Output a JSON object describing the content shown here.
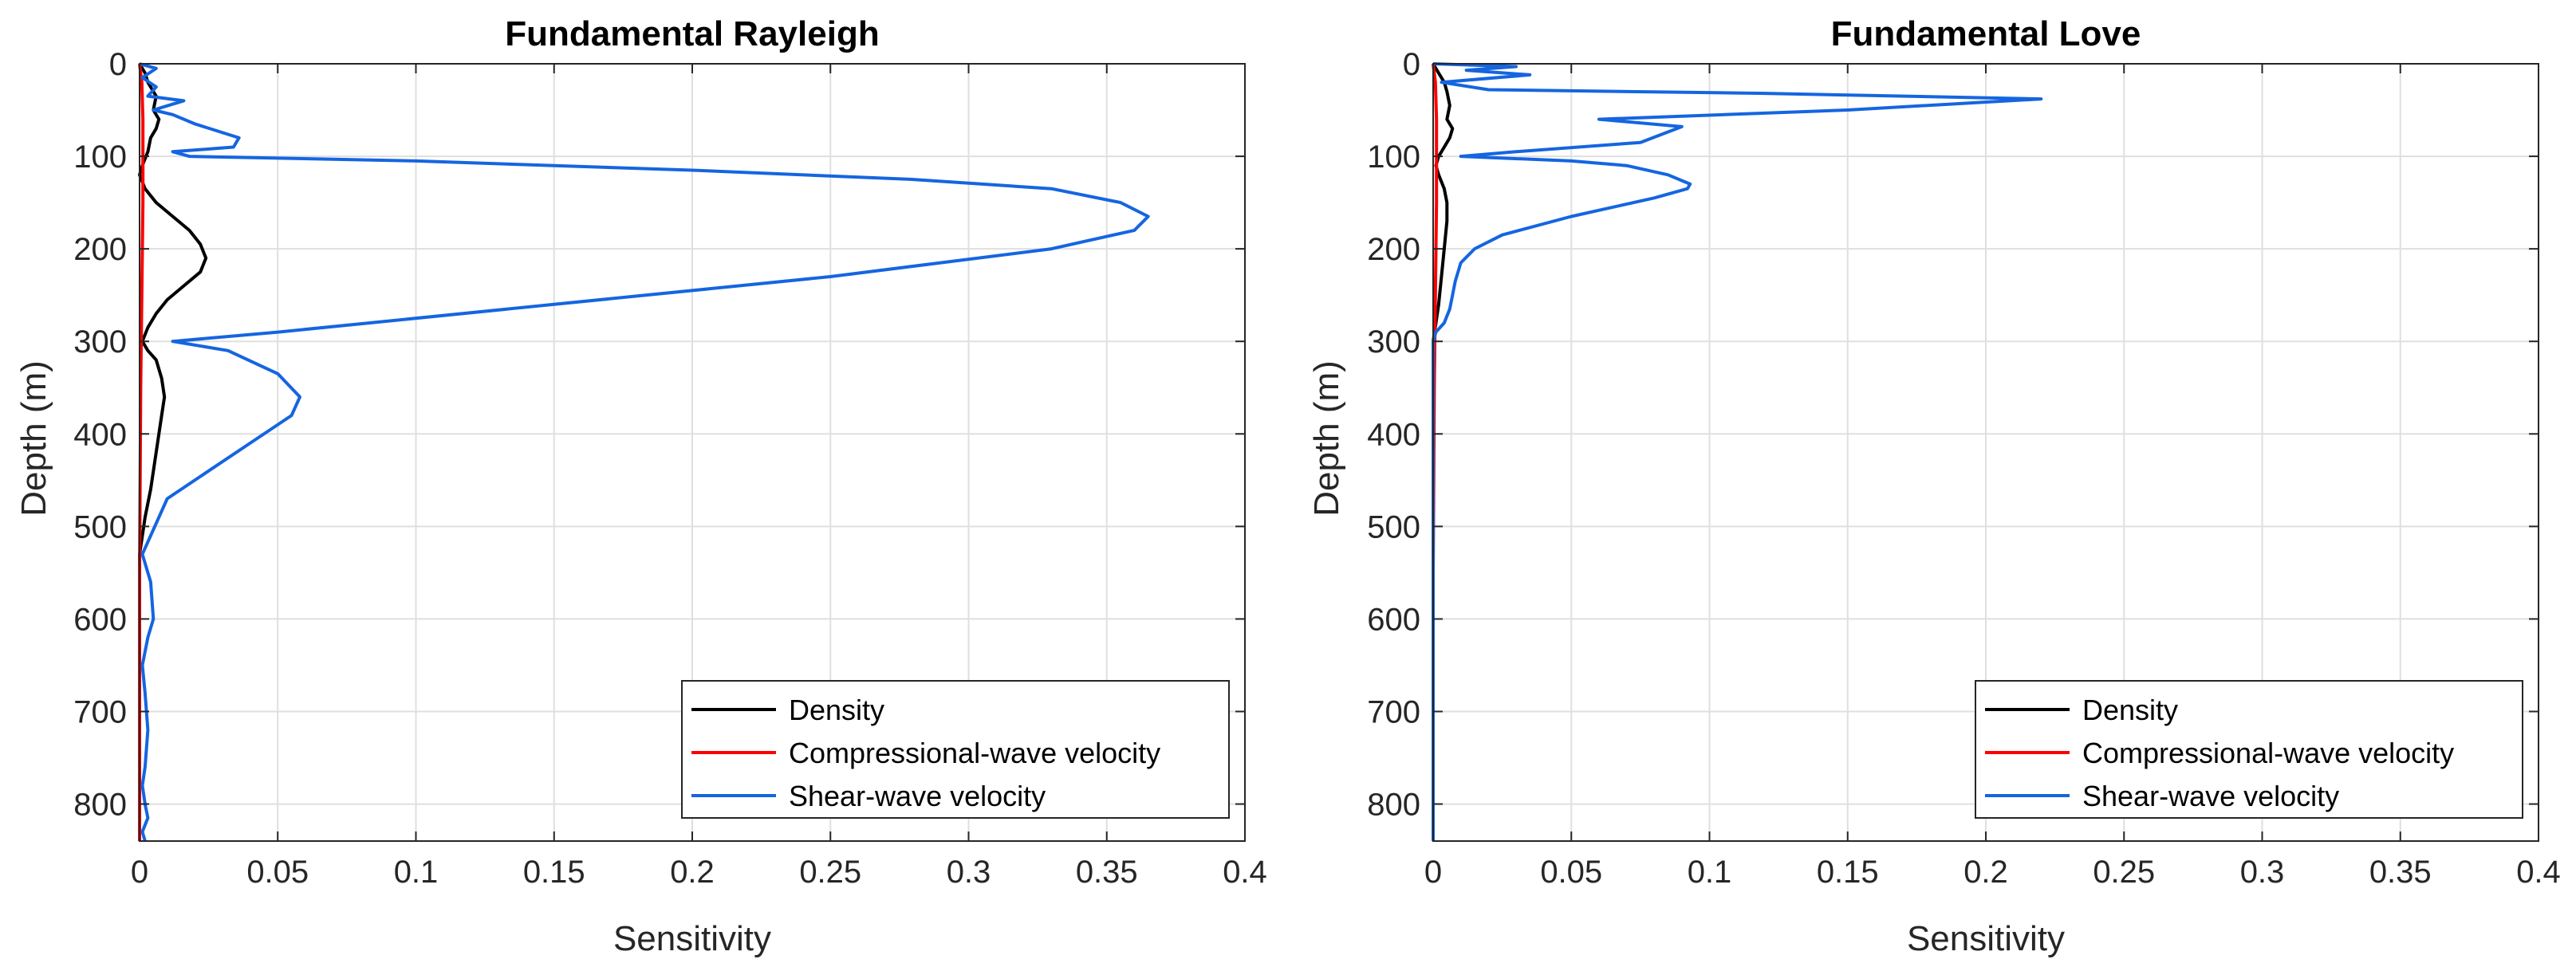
{
  "chart_data": [
    {
      "type": "line",
      "title": "Fundamental Rayleigh",
      "xlabel": "Sensitivity",
      "ylabel": "Depth (m)",
      "xlim": [
        0,
        0.4
      ],
      "ylim": [
        0,
        840
      ],
      "y_reversed": true,
      "grid": true,
      "legend_position": "bottom-right",
      "xticks": [
        "0",
        "0.05",
        "0.1",
        "0.15",
        "0.2",
        "0.25",
        "0.3",
        "0.35",
        "0.4"
      ],
      "yticks": [
        "0",
        "100",
        "200",
        "300",
        "400",
        "500",
        "600",
        "700",
        "800"
      ],
      "series": [
        {
          "name": "Density",
          "color": "#000000",
          "x": [
            0,
            0.002,
            0.003,
            0.006,
            0.005,
            0.007,
            0.006,
            0.004,
            0.003,
            0.001,
            0.0,
            0.002,
            0.006,
            0.012,
            0.018,
            0.022,
            0.024,
            0.022,
            0.016,
            0.01,
            0.006,
            0.003,
            0.001,
            0.003,
            0.006,
            0.008,
            0.009,
            0.008,
            0.006,
            0.004,
            0.002,
            0.001,
            0,
            0
          ],
          "y": [
            0,
            10,
            20,
            35,
            50,
            60,
            70,
            80,
            95,
            110,
            120,
            135,
            150,
            165,
            180,
            195,
            210,
            225,
            240,
            255,
            270,
            285,
            300,
            310,
            320,
            340,
            360,
            380,
            420,
            460,
            490,
            510,
            530,
            840
          ]
        },
        {
          "name": "Compressional-wave velocity",
          "color": "#ff0000",
          "x": [
            0,
            0.0008,
            0.0012,
            0.0012,
            0.0008,
            0.0004,
            0.0002,
            0,
            0
          ],
          "y": [
            0,
            20,
            60,
            150,
            250,
            350,
            450,
            550,
            840
          ]
        },
        {
          "name": "Shear-wave velocity",
          "color": "#1565e0",
          "x": [
            0,
            0.006,
            0.001,
            0.006,
            0.003,
            0.016,
            0.005,
            0.012,
            0.02,
            0.036,
            0.034,
            0.012,
            0.018,
            0.1,
            0.2,
            0.28,
            0.33,
            0.355,
            0.365,
            0.36,
            0.33,
            0.25,
            0.15,
            0.05,
            0.012,
            0.032,
            0.05,
            0.058,
            0.055,
            0.04,
            0.025,
            0.01,
            0.001,
            0.004,
            0.005,
            0.003,
            0.001,
            0.002,
            0.003,
            0.002,
            0.001,
            0.002,
            0.003,
            0.001,
            0.002
          ],
          "y": [
            0,
            5,
            15,
            25,
            35,
            40,
            50,
            55,
            65,
            80,
            90,
            95,
            100,
            105,
            115,
            125,
            135,
            150,
            165,
            180,
            200,
            230,
            260,
            290,
            300,
            310,
            335,
            360,
            380,
            410,
            440,
            470,
            530,
            560,
            600,
            620,
            650,
            680,
            720,
            760,
            780,
            800,
            815,
            830,
            840
          ]
        }
      ]
    },
    {
      "type": "line",
      "title": "Fundamental Love",
      "xlabel": "Sensitivity",
      "ylabel": "Depth (m)",
      "xlim": [
        0,
        0.4
      ],
      "ylim": [
        0,
        840
      ],
      "y_reversed": true,
      "grid": true,
      "legend_position": "bottom-right",
      "xticks": [
        "0",
        "0.05",
        "0.1",
        "0.15",
        "0.2",
        "0.25",
        "0.3",
        "0.35",
        "0.4"
      ],
      "yticks": [
        "0",
        "100",
        "200",
        "300",
        "400",
        "500",
        "600",
        "700",
        "800"
      ],
      "series": [
        {
          "name": "Density",
          "color": "#000000",
          "x": [
            0,
            0.002,
            0.004,
            0.005,
            0.006,
            0.005,
            0.007,
            0.006,
            0.004,
            0.002,
            0.001,
            0.002,
            0.004,
            0.005,
            0.005,
            0.004,
            0.003,
            0.002,
            0.001,
            0.0,
            0
          ],
          "y": [
            0,
            10,
            20,
            30,
            45,
            60,
            70,
            80,
            90,
            100,
            110,
            120,
            135,
            150,
            170,
            200,
            230,
            260,
            280,
            300,
            840
          ]
        },
        {
          "name": "Compressional-wave velocity",
          "color": "#ff0000",
          "x": [
            0,
            0.0008,
            0.0012,
            0.0012,
            0.0008,
            0.0004,
            0.0002,
            0,
            0
          ],
          "y": [
            0,
            20,
            60,
            150,
            250,
            350,
            450,
            550,
            840
          ]
        },
        {
          "name": "Shear-wave velocity",
          "color": "#1565e0",
          "x": [
            0,
            0.03,
            0.012,
            0.035,
            0.003,
            0.02,
            0.12,
            0.22,
            0.15,
            0.06,
            0.09,
            0.075,
            0.03,
            0.01,
            0.05,
            0.07,
            0.085,
            0.093,
            0.092,
            0.08,
            0.05,
            0.025,
            0.015,
            0.01,
            0.008,
            0.007,
            0.006,
            0.004,
            0.001,
            0.0,
            0
          ],
          "y": [
            0,
            3,
            7,
            12,
            20,
            28,
            32,
            38,
            50,
            60,
            68,
            85,
            95,
            100,
            105,
            110,
            120,
            130,
            135,
            145,
            165,
            185,
            200,
            215,
            235,
            250,
            265,
            280,
            290,
            300,
            840
          ]
        }
      ]
    }
  ]
}
